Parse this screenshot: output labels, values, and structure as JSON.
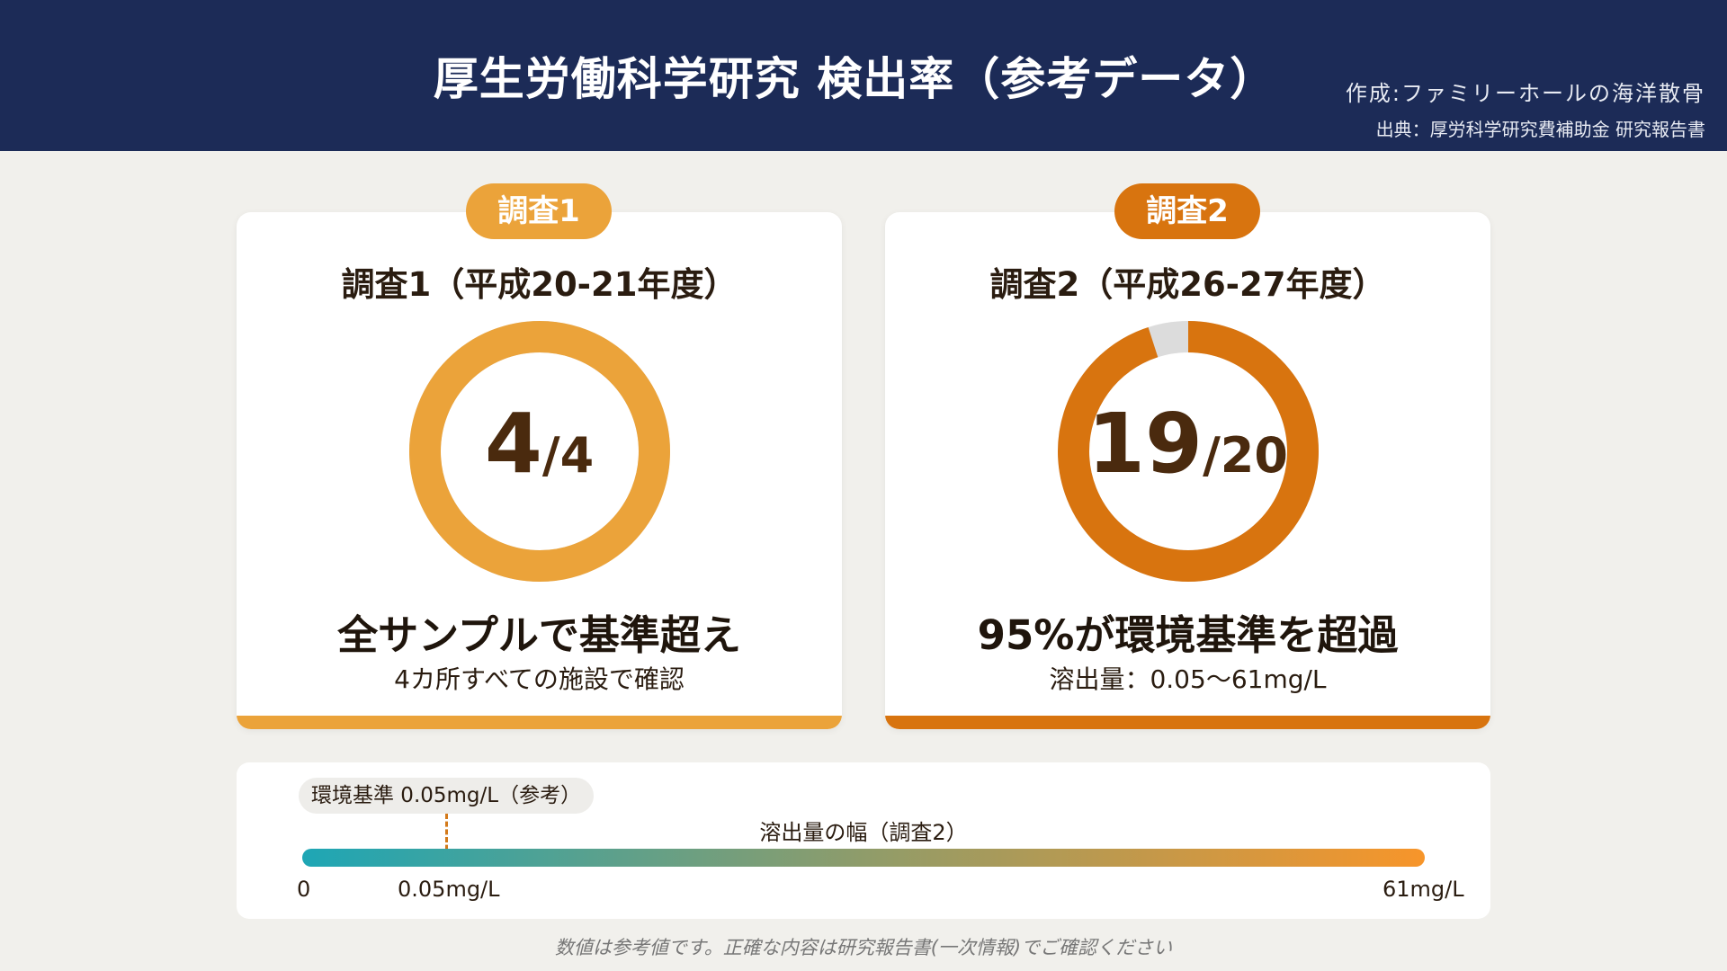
{
  "header": {
    "title": "厚生労働科学研究 検出率（参考データ）",
    "credit": "作成:ファミリーホールの海洋散骨",
    "source": "出典：厚労科学研究費補助金 研究報告書"
  },
  "colors": {
    "header": "#1c2b57",
    "survey1": "#eba33a",
    "survey2": "#d8740f",
    "remaining": "#dcdcdc"
  },
  "chart_data": [
    {
      "type": "pie",
      "style": "donut",
      "label": "調査1",
      "title": "調査1（平成20-21年度）",
      "detected": 4,
      "total": 4,
      "num": "4",
      "den": "/4",
      "headline": "全サンプルで基準超え",
      "subtext": "4カ所すべての施設で確認"
    },
    {
      "type": "pie",
      "style": "donut",
      "label": "調査2",
      "title": "調査2（平成26-27年度）",
      "detected": 19,
      "total": 20,
      "num": "19",
      "den": "/20",
      "headline": "95%が環境基準を超過",
      "subtext": "溶出量：0.05〜61mg/L"
    },
    {
      "type": "range",
      "title": "溶出量の幅（調査2）",
      "standard_label": "環境基準 0.05mg/L（参考）",
      "min": 0,
      "max": 61,
      "standard": 0.05,
      "tick_labels": [
        "0",
        "0.05mg/L",
        "61mg/L"
      ]
    }
  ],
  "footer": {
    "note": "数値は参考値です。正確な内容は研究報告書(一次情報)でご確認ください"
  }
}
